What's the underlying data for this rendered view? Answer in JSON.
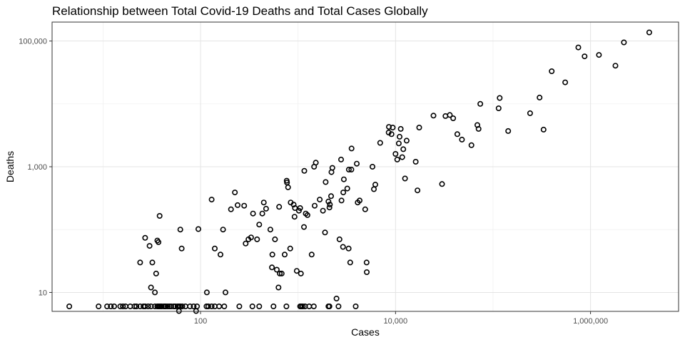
{
  "chart_data": {
    "type": "scatter",
    "title": "Relationship between Total Covid-19 Deaths and Total Cases Globally",
    "xlabel": "Cases",
    "ylabel": "Deaths",
    "x_scale": "log10",
    "y_scale": "log10",
    "xlim": [
      3,
      8000000
    ],
    "ylim": [
      5,
      200000
    ],
    "x_ticks": [
      100,
      10000,
      1000000
    ],
    "x_tick_labels": [
      "100",
      "10,000",
      "1,000,000"
    ],
    "y_ticks": [
      10,
      1000,
      100000
    ],
    "y_tick_labels": [
      "10",
      "1,000",
      "100,000"
    ],
    "grid": true,
    "legend": "none",
    "point_color": "#000000",
    "points": [
      [
        4.5,
        6
      ],
      [
        9,
        6
      ],
      [
        11,
        6
      ],
      [
        12,
        6
      ],
      [
        13,
        6
      ],
      [
        15,
        6
      ],
      [
        16,
        6
      ],
      [
        17,
        6
      ],
      [
        19,
        6
      ],
      [
        21,
        6
      ],
      [
        22,
        6
      ],
      [
        24,
        6
      ],
      [
        26,
        6
      ],
      [
        27,
        6
      ],
      [
        29,
        6
      ],
      [
        31,
        6
      ],
      [
        34,
        6
      ],
      [
        36,
        6
      ],
      [
        37,
        6
      ],
      [
        38,
        6
      ],
      [
        39,
        6
      ],
      [
        40,
        6
      ],
      [
        42,
        6
      ],
      [
        43,
        6
      ],
      [
        44,
        6
      ],
      [
        46,
        6
      ],
      [
        48,
        6
      ],
      [
        50,
        6
      ],
      [
        53,
        6
      ],
      [
        55,
        6
      ],
      [
        58,
        6
      ],
      [
        60,
        6
      ],
      [
        62,
        6
      ],
      [
        65,
        6
      ],
      [
        70,
        6
      ],
      [
        78,
        6
      ],
      [
        85,
        6
      ],
      [
        92,
        6
      ],
      [
        115,
        6
      ],
      [
        120,
        6
      ],
      [
        130,
        6
      ],
      [
        140,
        6
      ],
      [
        155,
        6
      ],
      [
        175,
        6
      ],
      [
        250,
        6
      ],
      [
        340,
        6
      ],
      [
        400,
        6
      ],
      [
        560,
        6
      ],
      [
        760,
        6
      ],
      [
        1050,
        6
      ],
      [
        1080,
        6
      ],
      [
        1120,
        6
      ],
      [
        1180,
        6
      ],
      [
        1300,
        6
      ],
      [
        1450,
        6
      ],
      [
        2050,
        6
      ],
      [
        2100,
        6
      ],
      [
        2600,
        6
      ],
      [
        3900,
        6
      ],
      [
        24,
        30
      ],
      [
        27,
        74
      ],
      [
        30,
        55
      ],
      [
        31,
        12
      ],
      [
        32,
        30
      ],
      [
        34,
        10
      ],
      [
        35,
        20
      ],
      [
        36,
        67
      ],
      [
        37,
        63
      ],
      [
        38,
        165
      ],
      [
        60,
        5.06
      ],
      [
        62,
        100
      ],
      [
        64,
        50
      ],
      [
        90,
        5.06
      ],
      [
        95,
        102
      ],
      [
        116,
        10
      ],
      [
        130,
        300
      ],
      [
        140,
        50
      ],
      [
        160,
        40
      ],
      [
        170,
        100
      ],
      [
        180,
        10
      ],
      [
        205,
        210
      ],
      [
        225,
        390
      ],
      [
        240,
        245
      ],
      [
        280,
        240
      ],
      [
        290,
        60
      ],
      [
        310,
        70
      ],
      [
        330,
        75
      ],
      [
        345,
        180
      ],
      [
        380,
        70
      ],
      [
        400,
        120
      ],
      [
        430,
        180
      ],
      [
        445,
        270
      ],
      [
        470,
        215
      ],
      [
        520,
        100
      ],
      [
        540,
        25
      ],
      [
        545,
        40
      ],
      [
        580,
        70
      ],
      [
        605,
        23
      ],
      [
        630,
        12
      ],
      [
        640,
        230
      ],
      [
        650,
        20
      ],
      [
        680,
        20
      ],
      [
        730,
        40
      ],
      [
        765,
        600
      ],
      [
        770,
        560
      ],
      [
        790,
        470
      ],
      [
        830,
        50
      ],
      [
        840,
        270
      ],
      [
        900,
        250
      ],
      [
        920,
        160
      ],
      [
        930,
        220
      ],
      [
        970,
        22
      ],
      [
        1020,
        200
      ],
      [
        1050,
        220
      ],
      [
        1070,
        20
      ],
      [
        1150,
        110
      ],
      [
        1160,
        860
      ],
      [
        1200,
        180
      ],
      [
        1250,
        170
      ],
      [
        1380,
        40
      ],
      [
        1460,
        1000
      ],
      [
        1480,
        240
      ],
      [
        1520,
        1160
      ],
      [
        1670,
        300
      ],
      [
        1800,
        200
      ],
      [
        1890,
        90
      ],
      [
        1920,
        570
      ],
      [
        2050,
        280
      ],
      [
        2100,
        225
      ],
      [
        2120,
        250
      ],
      [
        2180,
        340
      ],
      [
        2200,
        820
      ],
      [
        2250,
        960
      ],
      [
        2480,
        8
      ],
      [
        2660,
        70
      ],
      [
        2760,
        1300
      ],
      [
        2790,
        290
      ],
      [
        2890,
        53
      ],
      [
        2910,
        390
      ],
      [
        2950,
        630
      ],
      [
        3200,
        450
      ],
      [
        3300,
        50
      ],
      [
        3320,
        900
      ],
      [
        3430,
        30
      ],
      [
        3520,
        900
      ],
      [
        3540,
        1950
      ],
      [
        4000,
        1120
      ],
      [
        4090,
        270
      ],
      [
        4280,
        290
      ],
      [
        4880,
        210
      ],
      [
        5050,
        30
      ],
      [
        5070,
        21
      ],
      [
        5800,
        1000
      ],
      [
        6000,
        440
      ],
      [
        6200,
        520
      ],
      [
        6950,
        2400
      ],
      [
        8500,
        3500
      ],
      [
        8550,
        4300
      ],
      [
        9100,
        3300
      ],
      [
        9350,
        4200
      ],
      [
        10000,
        1600
      ],
      [
        10400,
        1300
      ],
      [
        10800,
        2350
      ],
      [
        11000,
        3000
      ],
      [
        11300,
        4000
      ],
      [
        11700,
        1420
      ],
      [
        12000,
        1900
      ],
      [
        12500,
        650
      ],
      [
        13000,
        2600
      ],
      [
        16100,
        1200
      ],
      [
        16800,
        420
      ],
      [
        17500,
        4200
      ],
      [
        24500,
        6500
      ],
      [
        30000,
        530
      ],
      [
        32500,
        6400
      ],
      [
        36000,
        6650
      ],
      [
        39000,
        5900
      ],
      [
        43000,
        3300
      ],
      [
        48000,
        2700
      ],
      [
        60000,
        2200
      ],
      [
        69000,
        4600
      ],
      [
        71000,
        4000
      ],
      [
        74000,
        10000
      ],
      [
        114000,
        8500
      ],
      [
        117000,
        12400
      ],
      [
        143000,
        3700
      ],
      [
        240000,
        7100
      ],
      [
        300000,
        12600
      ],
      [
        330000,
        3900
      ],
      [
        400000,
        33000
      ],
      [
        550000,
        22000
      ],
      [
        750000,
        79000
      ],
      [
        870000,
        57000
      ],
      [
        1220000,
        60000
      ],
      [
        1800000,
        40500
      ],
      [
        2200000,
        95000
      ],
      [
        4000000,
        137000
      ]
    ]
  }
}
